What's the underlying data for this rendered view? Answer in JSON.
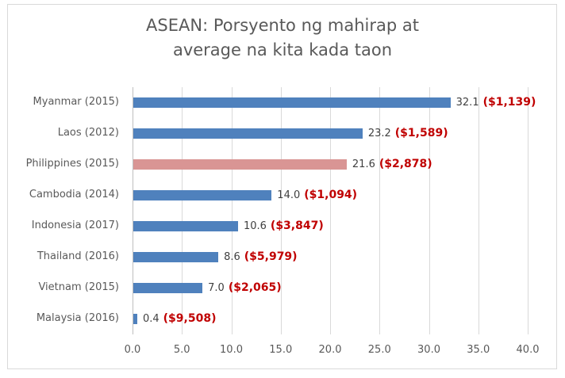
{
  "chart_data": {
    "type": "bar",
    "orientation": "horizontal",
    "title": "ASEAN: Porsyento ng mahirap at average na kita kada taon",
    "title_lines": [
      "ASEAN: Porsyento ng mahirap at",
      "average na kita kada taon"
    ],
    "xlabel": "",
    "ylabel": "",
    "xlim": [
      0,
      40
    ],
    "x_ticks": [
      "0.0",
      "5.0",
      "10.0",
      "15.0",
      "20.0",
      "25.0",
      "30.0",
      "35.0",
      "40.0"
    ],
    "grid": true,
    "legend": null,
    "categories": [
      "Myanmar (2015)",
      "Laos (2012)",
      "Philippines (2015)",
      "Cambodia (2014)",
      "Indonesia (2017)",
      "Thailand (2016)",
      "Vietnam (2015)",
      "Malaysia (2016)"
    ],
    "values": [
      32.1,
      23.2,
      21.6,
      14.0,
      10.6,
      8.6,
      7.0,
      0.4
    ],
    "value_labels": [
      "32.1",
      "23.2",
      "21.6",
      "14.0",
      "10.6",
      "8.6",
      "7.0",
      "0.4"
    ],
    "annotations": [
      "($1,139)",
      "($1,589)",
      "($2,878)",
      "($1,094)",
      "($3,847)",
      "($5,979)",
      "($2,065)",
      "($9,508)"
    ],
    "bar_colors": [
      "#4f81bd",
      "#4f81bd",
      "#d99594",
      "#4f81bd",
      "#4f81bd",
      "#4f81bd",
      "#4f81bd",
      "#4f81bd"
    ],
    "highlight_category": "Philippines (2015)"
  },
  "colors": {
    "bar": "#4f81bd",
    "highlight_bar": "#d99594",
    "annotation": "#c00000",
    "text": "#595959",
    "grid": "#d9d9d9"
  }
}
